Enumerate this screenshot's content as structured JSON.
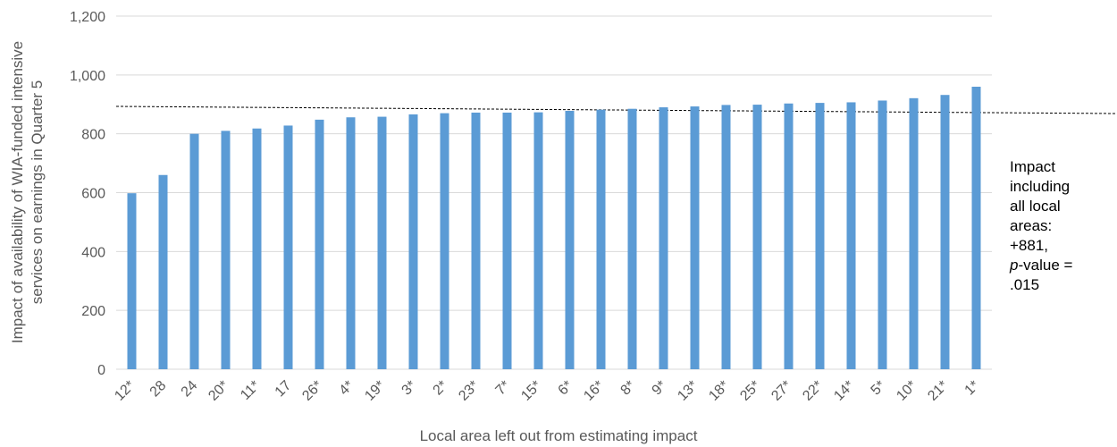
{
  "chart_data": {
    "type": "bar",
    "xlabel": "Local area left out from estimating impact",
    "ylabel_lines": [
      "Impact of availability of WIA-funded intensive",
      "services on earnings in Quarter 5"
    ],
    "ylim": [
      0,
      1200
    ],
    "y_ticks": [
      0,
      200,
      400,
      600,
      800,
      1000,
      1200
    ],
    "y_tick_labels": [
      "0",
      "200",
      "400",
      "600",
      "800",
      "1,000",
      "1,200"
    ],
    "grid": true,
    "categories": [
      "12*",
      "28",
      "24",
      "20*",
      "11*",
      "17",
      "26*",
      "4*",
      "19*",
      "3*",
      "2*",
      "23*",
      "7*",
      "15*",
      "6*",
      "16*",
      "8*",
      "9*",
      "13*",
      "18*",
      "25*",
      "27*",
      "22*",
      "14*",
      "5*",
      "10*",
      "21*",
      "1*"
    ],
    "values": [
      598,
      660,
      800,
      810,
      818,
      828,
      848,
      856,
      858,
      866,
      870,
      872,
      872,
      873,
      878,
      882,
      885,
      890,
      893,
      898,
      899,
      903,
      905,
      907,
      913,
      921,
      932,
      960
    ],
    "reference_line": {
      "value": 881,
      "style": "dashed"
    },
    "bar_color": "#5B9BD5",
    "annotation_lines": [
      "Impact",
      "including",
      "all local",
      "areas:",
      "+881,",
      "p-value =",
      ".015"
    ]
  }
}
